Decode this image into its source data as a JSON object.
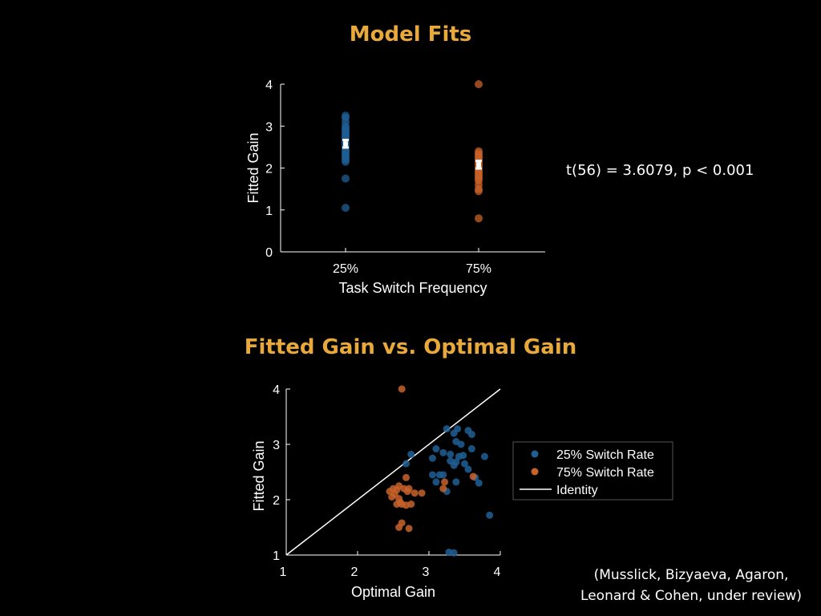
{
  "title_top": "Model Fits",
  "title_bottom": "Fitted Gain vs. Optimal Gain",
  "stats_text": "t(56) = 3.6079, p < 0.001",
  "citation": {
    "line1": "(Musslick, Bizyaeva, Agaron,",
    "line2": "Leonard & Cohen, under review)"
  },
  "colors": {
    "series25": "#1F5F94",
    "series75": "#C8622A",
    "title": "#E8A93A",
    "identity": "#FFFFFF",
    "mean_marker": "#FFFFFF"
  },
  "chart_data": [
    {
      "type": "scatter",
      "title": "Model Fits",
      "xlabel": "Task Switch Frequency",
      "ylabel": "Fitted Gain",
      "categories": [
        "25%",
        "75%"
      ],
      "ylim": [
        0,
        4
      ],
      "yticks": [
        "0",
        "1",
        "2",
        "3",
        "4"
      ],
      "grid": false,
      "series": [
        {
          "category": "25%",
          "values": [
            3.25,
            3.2,
            3.1,
            3.0,
            2.95,
            2.9,
            2.85,
            2.8,
            2.75,
            2.7,
            2.65,
            2.6,
            2.55,
            2.5,
            2.45,
            2.4,
            2.35,
            2.3,
            2.25,
            2.2,
            2.15,
            1.75,
            1.05
          ],
          "mean": 2.58,
          "sem": 0.09
        },
        {
          "category": "75%",
          "values": [
            4.0,
            2.4,
            2.35,
            2.3,
            2.25,
            2.2,
            2.15,
            2.1,
            2.05,
            2.0,
            1.95,
            1.9,
            1.85,
            1.8,
            1.75,
            1.7,
            1.6,
            1.5,
            1.45,
            0.8
          ],
          "mean": 2.08,
          "sem": 0.09
        }
      ]
    },
    {
      "type": "scatter",
      "title": "Fitted Gain vs. Optimal Gain",
      "xlabel": "Optimal Gain",
      "ylabel": "Fitted Gain",
      "xlim": [
        1,
        4
      ],
      "ylim": [
        1,
        4
      ],
      "xticks": [
        "1",
        "2",
        "3",
        "4"
      ],
      "yticks": [
        "1",
        "2",
        "3",
        "4"
      ],
      "grid": false,
      "legend_position": "right",
      "series": [
        {
          "name": "25% Switch Rate",
          "points": [
            [
              3.25,
              3.28
            ],
            [
              3.4,
              3.28
            ],
            [
              3.55,
              3.25
            ],
            [
              3.6,
              3.18
            ],
            [
              3.35,
              3.2
            ],
            [
              3.38,
              3.05
            ],
            [
              3.45,
              3.0
            ],
            [
              3.6,
              2.92
            ],
            [
              3.1,
              2.92
            ],
            [
              3.2,
              2.85
            ],
            [
              3.3,
              2.82
            ],
            [
              2.75,
              2.82
            ],
            [
              3.42,
              2.78
            ],
            [
              3.48,
              2.8
            ],
            [
              3.78,
              2.78
            ],
            [
              3.05,
              2.75
            ],
            [
              3.3,
              2.7
            ],
            [
              3.38,
              2.68
            ],
            [
              3.5,
              2.65
            ],
            [
              2.68,
              2.65
            ],
            [
              3.35,
              2.62
            ],
            [
              3.55,
              2.55
            ],
            [
              3.65,
              2.4
            ],
            [
              3.05,
              2.45
            ],
            [
              3.15,
              2.45
            ],
            [
              3.2,
              2.45
            ],
            [
              3.1,
              2.32
            ],
            [
              3.38,
              2.32
            ],
            [
              3.7,
              2.3
            ],
            [
              3.25,
              2.15
            ],
            [
              3.85,
              1.72
            ],
            [
              3.28,
              1.05
            ],
            [
              3.35,
              1.04
            ]
          ]
        },
        {
          "name": "75% Switch Rate",
          "points": [
            [
              2.62,
              4.0
            ],
            [
              2.68,
              2.4
            ],
            [
              2.58,
              2.25
            ],
            [
              2.5,
              2.2
            ],
            [
              2.55,
              2.18
            ],
            [
              2.45,
              2.15
            ],
            [
              2.7,
              2.15
            ],
            [
              2.8,
              2.12
            ],
            [
              2.65,
              2.2
            ],
            [
              2.52,
              2.1
            ],
            [
              2.48,
              2.05
            ],
            [
              2.58,
              2.02
            ],
            [
              2.72,
              2.2
            ],
            [
              2.6,
              1.95
            ],
            [
              2.55,
              1.92
            ],
            [
              2.62,
              1.92
            ],
            [
              2.68,
              1.9
            ],
            [
              2.75,
              1.92
            ],
            [
              2.62,
              1.58
            ],
            [
              2.58,
              1.5
            ],
            [
              2.72,
              1.48
            ],
            [
              3.22,
              2.32
            ],
            [
              3.2,
              2.2
            ],
            [
              3.62,
              2.42
            ],
            [
              2.9,
              2.12
            ]
          ]
        },
        {
          "name": "Identity",
          "line": [
            [
              1,
              1
            ],
            [
              4,
              4
            ]
          ]
        }
      ]
    }
  ]
}
